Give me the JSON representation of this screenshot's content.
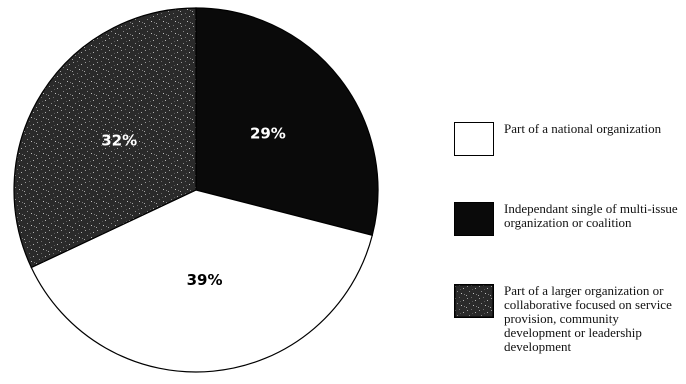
{
  "chart_data": {
    "type": "pie",
    "title": "",
    "slices": [
      {
        "label": "Independant single of multi-issue organization or coalition",
        "value": 29,
        "display": "29%",
        "color": "#0a0a0a",
        "label_color": "#ffffff",
        "fill": "solid"
      },
      {
        "label": "Part of a national organization",
        "value": 39,
        "display": "39%",
        "color": "#ffffff",
        "label_color": "#000000",
        "fill": "solid"
      },
      {
        "label": "Part of a larger organization or collaborative focused on service provision, community development or leadership development",
        "value": 32,
        "display": "32%",
        "color": "#2a2a2a",
        "label_color": "#ffffff",
        "fill": "speckled"
      }
    ],
    "start_angle_deg": 0,
    "direction": "clockwise",
    "legend_position": "right",
    "legend": [
      {
        "label": "Part of a national organization",
        "color": "#ffffff",
        "fill": "solid"
      },
      {
        "label": "Independant single of multi-issue organization or coalition",
        "color": "#0a0a0a",
        "fill": "solid"
      },
      {
        "label": "Part of a larger organization or collaborative focused on service provision, community development or leadership development",
        "color": "#2a2a2a",
        "fill": "speckled"
      }
    ]
  }
}
